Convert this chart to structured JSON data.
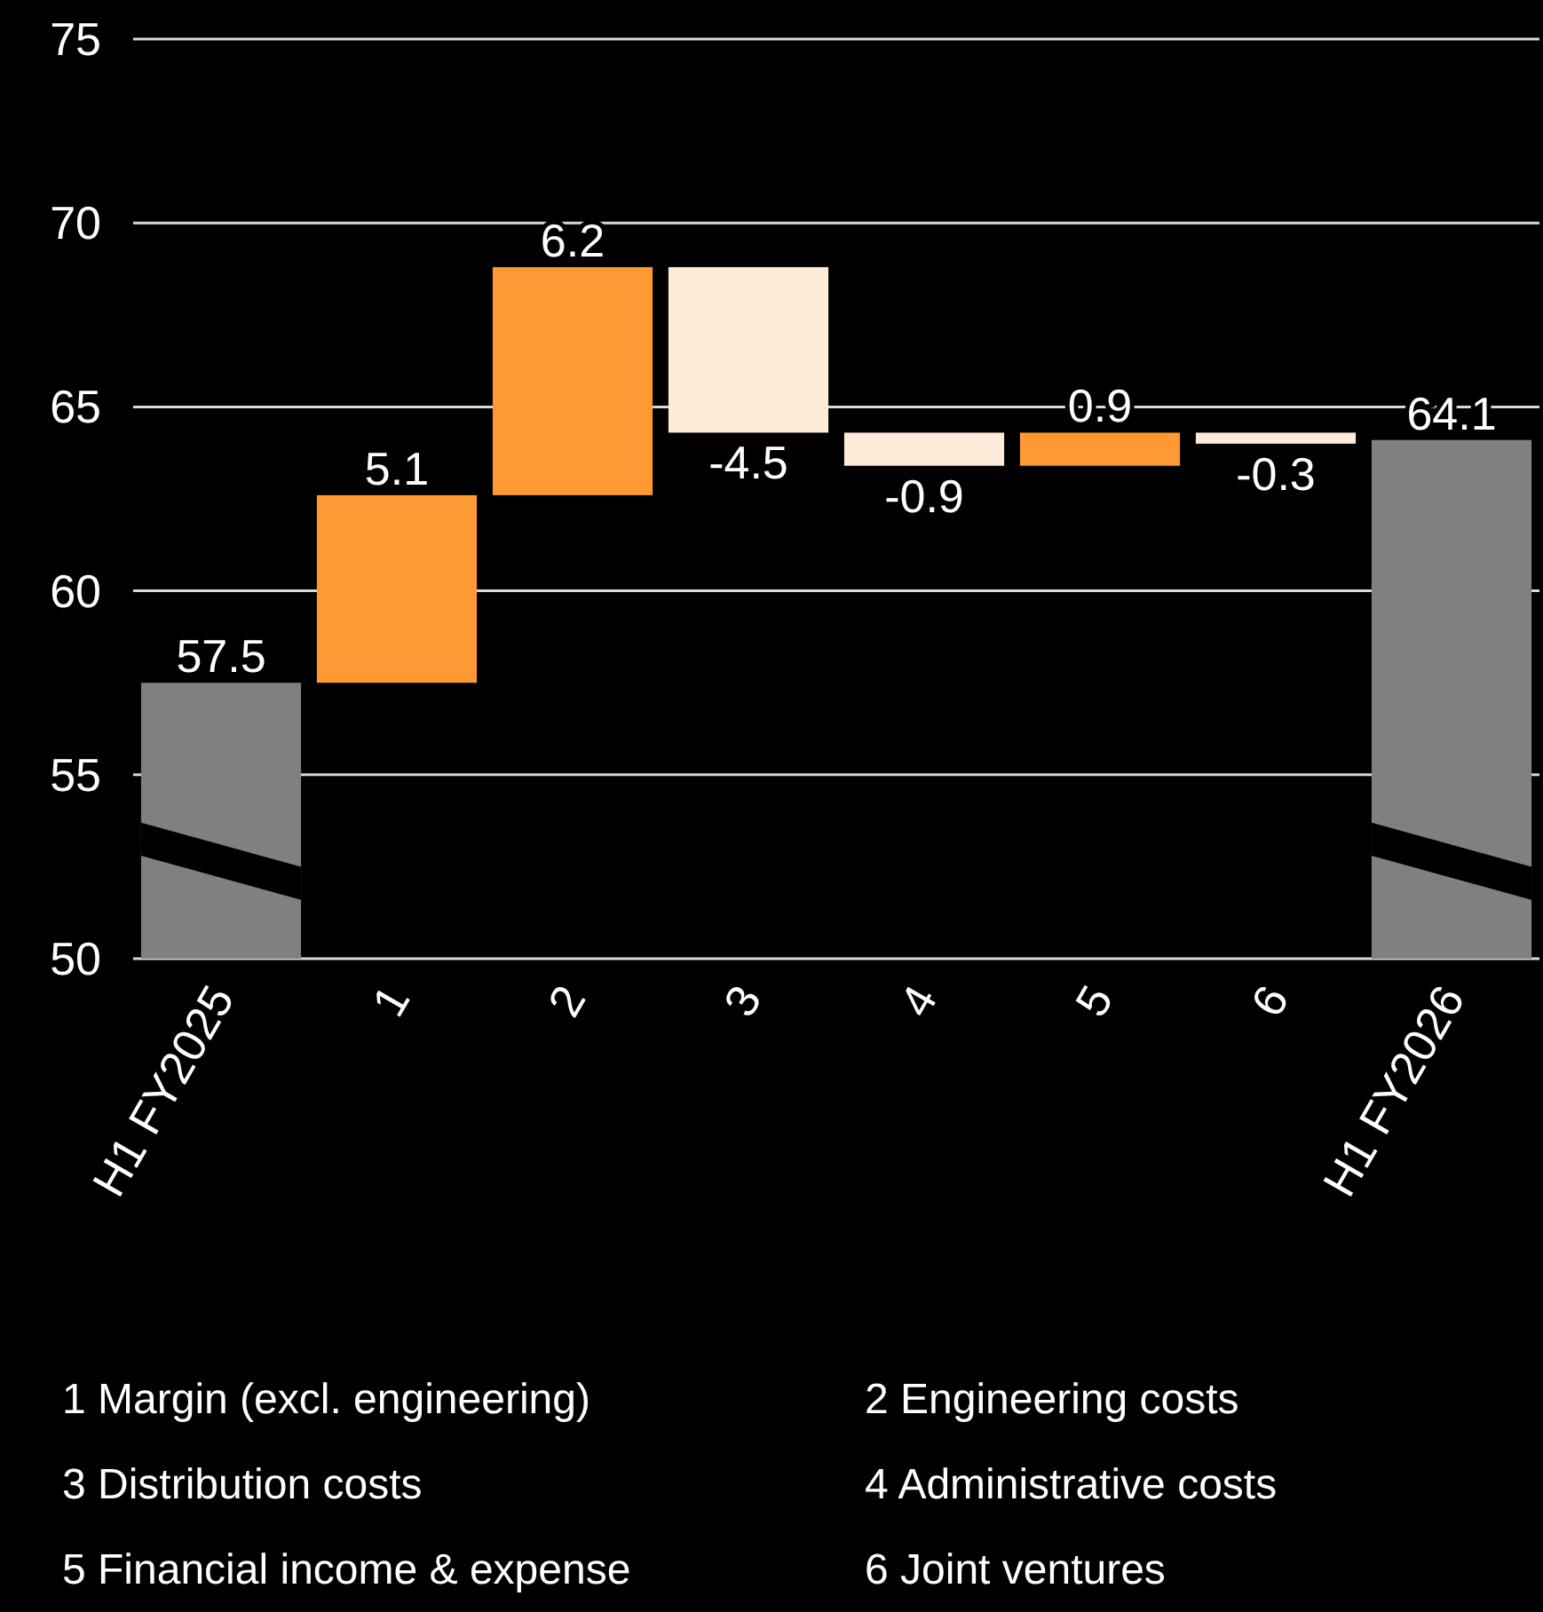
{
  "chart_data": {
    "type": "bar",
    "categories": [
      "H1 FY2025",
      "1",
      "2",
      "3",
      "4",
      "5",
      "6",
      "H1 FY2026"
    ],
    "values": [
      7.5,
      5.1,
      6.2,
      -4.5,
      -0.9,
      0.9,
      -0.3,
      14.1
    ],
    "base": [
      50,
      57.5,
      62.6,
      68.8,
      64.3,
      63.4,
      64.3,
      50
    ],
    "colors": [
      "#808080",
      "#ff9933",
      "#ff9933",
      "#ffebd9",
      "#ffebd9",
      "#ff9933",
      "#ffebd9",
      "#808080"
    ],
    "value_labels": [
      "57.5",
      "5.1",
      "6.2",
      "-4.5",
      "-0.9",
      "0.9",
      "-0.3",
      "64.1"
    ],
    "ylim": [
      50,
      75
    ],
    "yticks": [
      50,
      55,
      60,
      65,
      70,
      75
    ],
    "grid": "y",
    "annotations": [
      "1 Margin (excl. engineering)",
      "2 Engineering costs",
      "3 Distribution costs",
      "4 Administrative costs",
      "5 Financial income & expense",
      "6 Joint ventures"
    ]
  }
}
